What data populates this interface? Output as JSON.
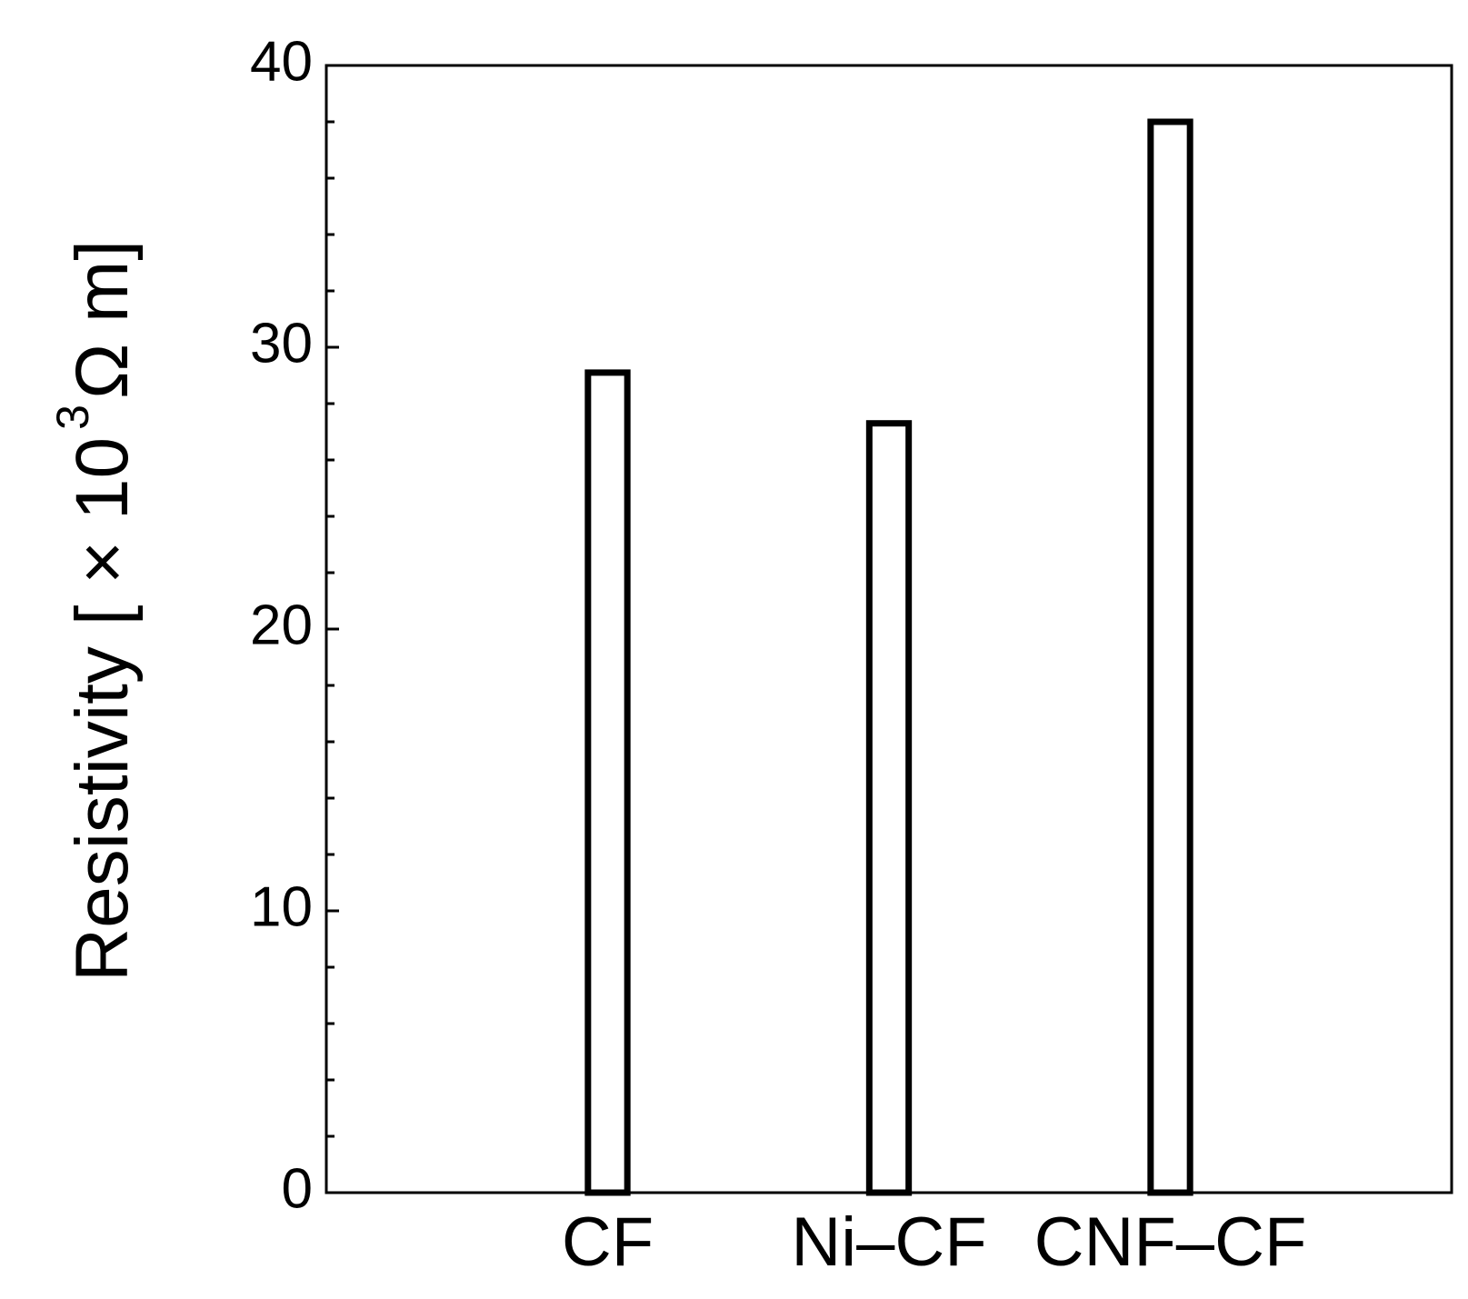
{
  "chart_data": {
    "type": "bar",
    "y_label": {
      "text": "Resistivity [ × 10",
      "superscript": "3",
      "unit": "Ω m]"
    },
    "categories": [
      "CF",
      "Ni–CF",
      "CNF–CF"
    ],
    "values": [
      29.1,
      27.3,
      38.0
    ],
    "color": "#ffffff",
    "edgecolor": "#000000",
    "ylim": [
      0,
      40
    ],
    "yticks": [
      0,
      10,
      20,
      30,
      40
    ],
    "yminorticks": [
      2,
      4,
      6,
      8,
      12,
      14,
      16,
      18,
      22,
      24,
      26,
      28,
      32,
      34,
      36,
      38
    ],
    "grid": false
  }
}
